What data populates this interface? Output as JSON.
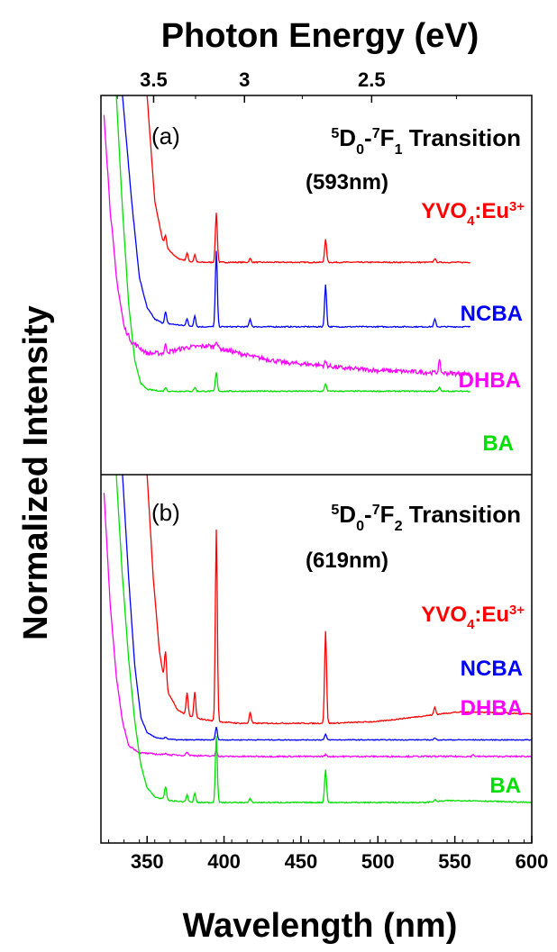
{
  "chart_data": {
    "type": "line",
    "top_axis": {
      "title": "Photon Energy (eV)",
      "ticks": [
        {
          "label": "3.5",
          "value": 3.5
        },
        {
          "label": "3",
          "value": 3.0
        },
        {
          "label": "2.5",
          "value": 2.5
        }
      ]
    },
    "x_axis": {
      "title": "Wavelength (nm)",
      "xlim": [
        320,
        600
      ],
      "ticks": [
        350,
        400,
        450,
        500,
        550,
        600
      ],
      "tick_labels": [
        "350",
        "400",
        "450",
        "500",
        "550",
        "600"
      ]
    },
    "y_axis": {
      "title": "Normalized Intensity"
    },
    "panels": [
      {
        "tag": "(a)",
        "transition": {
          "prefix_sup": "5",
          "d": "D",
          "d_sub": "0",
          "dash": "-",
          "f_sup": "7",
          "f": "F",
          "f_sub": "1",
          "word": "Transition"
        },
        "wavelength": "(593nm)",
        "series": [
          {
            "name": "YVO",
            "name_sub": "4",
            "name_rest": ":Eu",
            "name_sup": "3+",
            "color": "#ff0000",
            "x_end": 560,
            "points": [
              [
                350,
                1.0
              ],
              [
                355,
                0.72
              ],
              [
                360,
                0.62
              ],
              [
                362,
                0.6
              ],
              [
                370,
                0.57
              ],
              [
                380,
                0.56
              ],
              [
                390,
                0.56
              ],
              [
                395,
                0.56
              ],
              [
                400,
                0.56
              ],
              [
                420,
                0.56
              ],
              [
                450,
                0.56
              ],
              [
                465,
                0.56
              ],
              [
                480,
                0.56
              ],
              [
                500,
                0.56
              ],
              [
                530,
                0.56
              ],
              [
                560,
                0.56
              ]
            ],
            "peaks": [
              [
                362,
                0.03
              ],
              [
                376,
                0.02
              ],
              [
                381,
                0.02
              ],
              [
                395,
                0.13
              ],
              [
                417,
                0.01
              ],
              [
                466,
                0.06
              ],
              [
                537,
                0.01
              ]
            ]
          },
          {
            "name": "NCBA",
            "color": "#0000ff",
            "x_end": 560,
            "points": [
              [
                334,
                1.0
              ],
              [
                340,
                0.72
              ],
              [
                345,
                0.52
              ],
              [
                350,
                0.44
              ],
              [
                355,
                0.41
              ],
              [
                360,
                0.4
              ],
              [
                380,
                0.39
              ],
              [
                400,
                0.39
              ],
              [
                430,
                0.39
              ],
              [
                470,
                0.39
              ],
              [
                500,
                0.39
              ],
              [
                530,
                0.39
              ],
              [
                560,
                0.39
              ]
            ],
            "peaks": [
              [
                362,
                0.03
              ],
              [
                376,
                0.02
              ],
              [
                381,
                0.03
              ],
              [
                395,
                0.2
              ],
              [
                417,
                0.02
              ],
              [
                466,
                0.11
              ],
              [
                537,
                0.02
              ]
            ]
          },
          {
            "name": "DHBA",
            "color": "#ff00ff",
            "x_end": 560,
            "points": [
              [
                322,
                0.95
              ],
              [
                326,
                0.7
              ],
              [
                330,
                0.52
              ],
              [
                335,
                0.39
              ],
              [
                340,
                0.35
              ],
              [
                350,
                0.32
              ],
              [
                360,
                0.32
              ],
              [
                375,
                0.335
              ],
              [
                390,
                0.34
              ],
              [
                400,
                0.33
              ],
              [
                420,
                0.31
              ],
              [
                440,
                0.295
              ],
              [
                460,
                0.29
              ],
              [
                480,
                0.28
              ],
              [
                500,
                0.275
              ],
              [
                530,
                0.27
              ],
              [
                560,
                0.265
              ]
            ],
            "peaks": [
              [
                362,
                0.02
              ],
              [
                395,
                0.02
              ],
              [
                466,
                0.01
              ],
              [
                540,
                0.03
              ]
            ]
          },
          {
            "name": "BA",
            "color": "#00e000",
            "x_end": 560,
            "points": [
              [
                330,
                1.0
              ],
              [
                334,
                0.7
              ],
              [
                338,
                0.45
              ],
              [
                342,
                0.3
              ],
              [
                346,
                0.24
              ],
              [
                350,
                0.225
              ],
              [
                360,
                0.22
              ],
              [
                380,
                0.22
              ],
              [
                400,
                0.22
              ],
              [
                440,
                0.22
              ],
              [
                480,
                0.22
              ],
              [
                520,
                0.22
              ],
              [
                560,
                0.22
              ]
            ],
            "peaks": [
              [
                362,
                0.01
              ],
              [
                381,
                0.01
              ],
              [
                395,
                0.05
              ],
              [
                466,
                0.02
              ],
              [
                540,
                0.01
              ]
            ]
          }
        ]
      },
      {
        "tag": "(b)",
        "transition": {
          "prefix_sup": "5",
          "d": "D",
          "d_sub": "0",
          "dash": "-",
          "f_sup": "7",
          "f": "F",
          "f_sub": "2",
          "word": "Transition"
        },
        "wavelength": "(619nm)",
        "series": [
          {
            "name": "YVO",
            "name_sub": "4",
            "name_rest": ":Eu",
            "name_sup": "3+",
            "color": "#ff0000",
            "x_end": 600,
            "points": [
              [
                350,
                1.0
              ],
              [
                354,
                0.72
              ],
              [
                358,
                0.52
              ],
              [
                362,
                0.42
              ],
              [
                370,
                0.36
              ],
              [
                380,
                0.34
              ],
              [
                395,
                0.33
              ],
              [
                410,
                0.325
              ],
              [
                440,
                0.325
              ],
              [
                470,
                0.325
              ],
              [
                500,
                0.33
              ],
              [
                530,
                0.345
              ],
              [
                550,
                0.355
              ],
              [
                570,
                0.355
              ],
              [
                600,
                0.35
              ]
            ],
            "peaks": [
              [
                362,
                0.1
              ],
              [
                376,
                0.06
              ],
              [
                381,
                0.07
              ],
              [
                395,
                0.52
              ],
              [
                417,
                0.03
              ],
              [
                466,
                0.25
              ],
              [
                537,
                0.02
              ]
            ]
          },
          {
            "name": "NCBA",
            "color": "#0000ff",
            "x_end": 600,
            "points": [
              [
                334,
                1.0
              ],
              [
                338,
                0.72
              ],
              [
                342,
                0.48
              ],
              [
                346,
                0.34
              ],
              [
                350,
                0.3
              ],
              [
                356,
                0.285
              ],
              [
                370,
                0.28
              ],
              [
                400,
                0.28
              ],
              [
                450,
                0.28
              ],
              [
                500,
                0.28
              ],
              [
                550,
                0.28
              ],
              [
                600,
                0.28
              ]
            ],
            "peaks": [
              [
                362,
                0.005
              ],
              [
                395,
                0.035
              ],
              [
                466,
                0.015
              ],
              [
                537,
                0.005
              ]
            ]
          },
          {
            "name": "DHBA",
            "color": "#ff00ff",
            "x_end": 600,
            "points": [
              [
                322,
                0.95
              ],
              [
                326,
                0.65
              ],
              [
                330,
                0.45
              ],
              [
                334,
                0.33
              ],
              [
                338,
                0.265
              ],
              [
                345,
                0.245
              ],
              [
                360,
                0.24
              ],
              [
                400,
                0.235
              ],
              [
                450,
                0.235
              ],
              [
                500,
                0.235
              ],
              [
                550,
                0.235
              ],
              [
                600,
                0.235
              ]
            ],
            "peaks": [
              [
                362,
                0.005
              ],
              [
                376,
                0.01
              ],
              [
                395,
                0.015
              ],
              [
                466,
                0.005
              ],
              [
                562,
                0.005
              ]
            ]
          },
          {
            "name": "BA",
            "color": "#00e000",
            "x_end": 600,
            "points": [
              [
                330,
                1.0
              ],
              [
                334,
                0.72
              ],
              [
                338,
                0.5
              ],
              [
                342,
                0.33
              ],
              [
                346,
                0.21
              ],
              [
                350,
                0.15
              ],
              [
                355,
                0.125
              ],
              [
                365,
                0.115
              ],
              [
                380,
                0.11
              ],
              [
                400,
                0.11
              ],
              [
                450,
                0.11
              ],
              [
                500,
                0.11
              ],
              [
                530,
                0.11
              ],
              [
                545,
                0.115
              ],
              [
                560,
                0.115
              ],
              [
                600,
                0.11
              ]
            ],
            "peaks": [
              [
                362,
                0.035
              ],
              [
                376,
                0.02
              ],
              [
                381,
                0.025
              ],
              [
                395,
                0.18
              ],
              [
                417,
                0.01
              ],
              [
                466,
                0.09
              ],
              [
                537,
                0.005
              ]
            ]
          }
        ]
      }
    ]
  }
}
